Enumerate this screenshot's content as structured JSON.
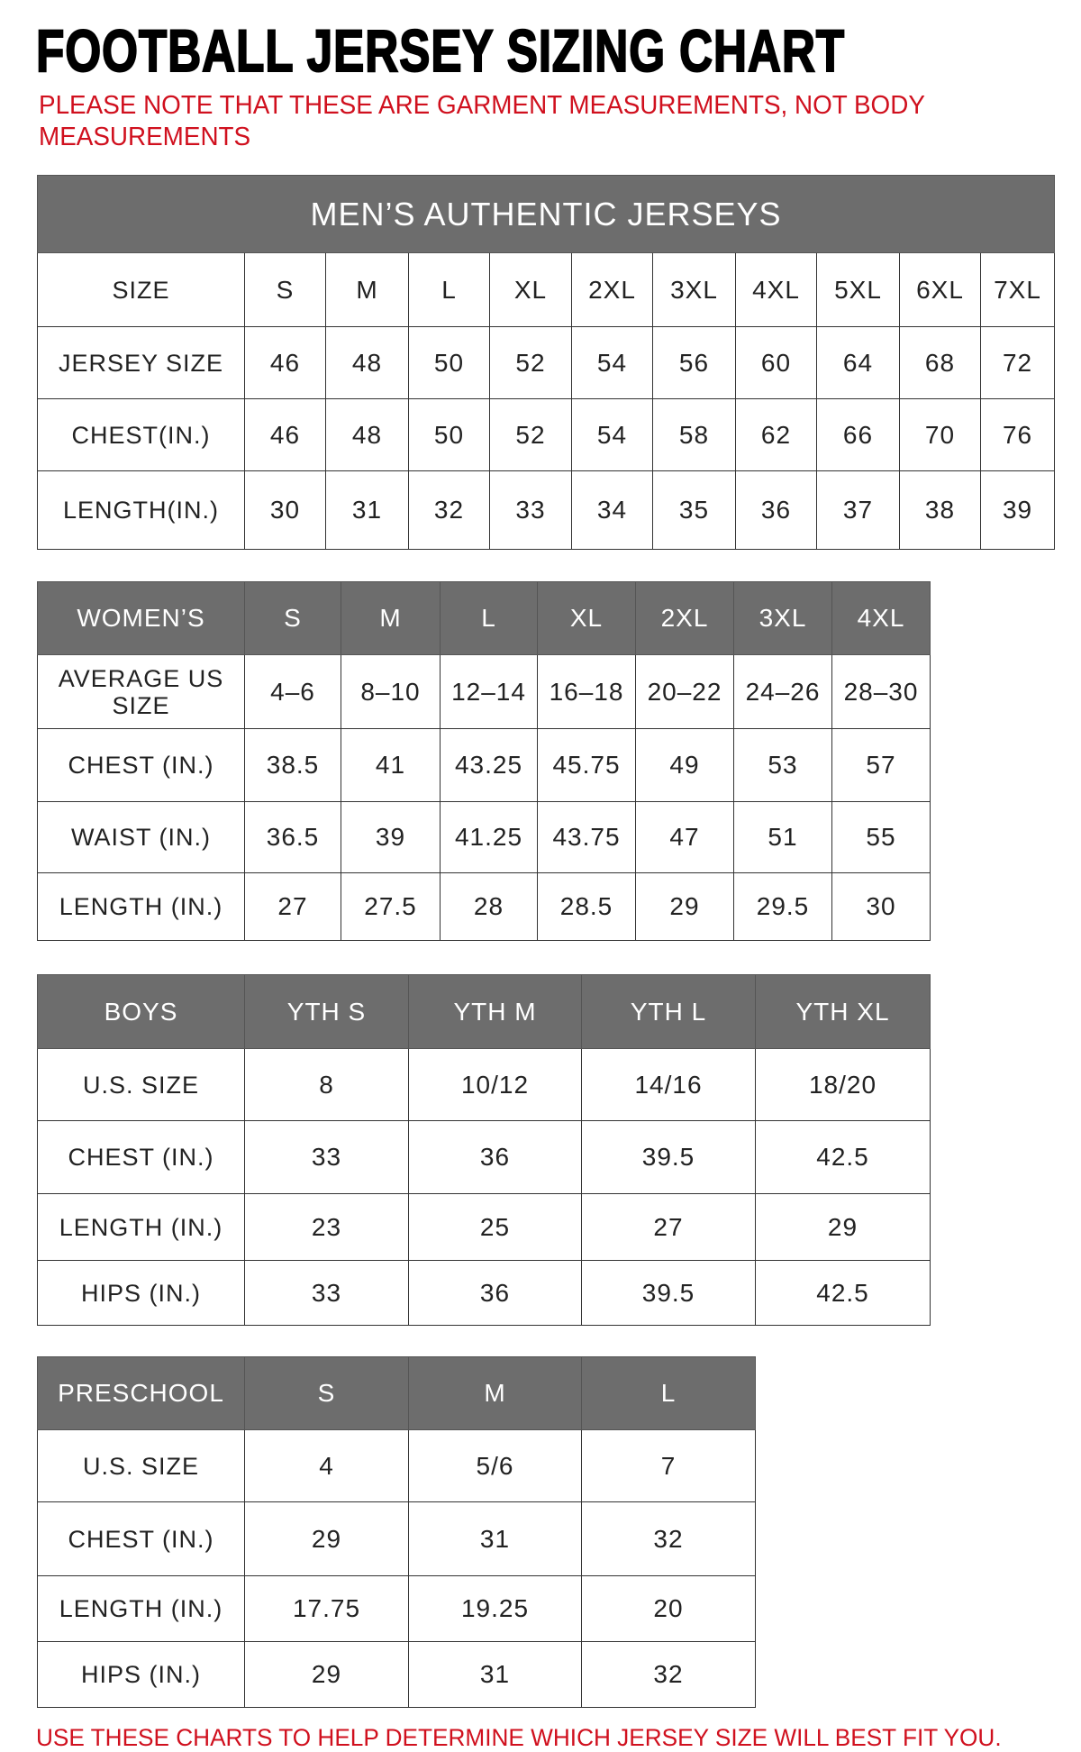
{
  "title": "FOOTBALL JERSEY SIZING CHART",
  "note": "PLEASE NOTE THAT THESE ARE GARMENT MEASUREMENTS, NOT BODY MEASUREMENTS",
  "footer": "USE THESE CHARTS TO HELP DETERMINE WHICH JERSEY SIZE WILL BEST FIT YOU.",
  "colors": {
    "header_bg": "#6d6d6d",
    "note_red": "#d0101e"
  },
  "tables": [
    {
      "id": "mens",
      "banner": "MEN’S AUTHENTIC JERSEYS",
      "header": null,
      "rows": [
        [
          "SIZE",
          "S",
          "M",
          "L",
          "XL",
          "2XL",
          "3XL",
          "4XL",
          "5XL",
          "6XL",
          "7XL"
        ],
        [
          "JERSEY SIZE",
          "46",
          "48",
          "50",
          "52",
          "54",
          "56",
          "60",
          "64",
          "68",
          "72"
        ],
        [
          "CHEST(IN.)",
          "46",
          "48",
          "50",
          "52",
          "54",
          "58",
          "62",
          "66",
          "70",
          "76"
        ],
        [
          "LENGTH(IN.)",
          "30",
          "31",
          "32",
          "33",
          "34",
          "35",
          "36",
          "37",
          "38",
          "39"
        ]
      ]
    },
    {
      "id": "womens",
      "header": [
        "WOMEN’S",
        "S",
        "M",
        "L",
        "XL",
        "2XL",
        "3XL",
        "4XL"
      ],
      "rows": [
        [
          "AVERAGE US SIZE",
          "4–6",
          "8–10",
          "12–14",
          "16–18",
          "20–22",
          "24–26",
          "28–30"
        ],
        [
          "CHEST (IN.)",
          "38.5",
          "41",
          "43.25",
          "45.75",
          "49",
          "53",
          "57"
        ],
        [
          "WAIST (IN.)",
          "36.5",
          "39",
          "41.25",
          "43.75",
          "47",
          "51",
          "55"
        ],
        [
          "LENGTH (IN.)",
          "27",
          "27.5",
          "28",
          "28.5",
          "29",
          "29.5",
          "30"
        ]
      ]
    },
    {
      "id": "boys",
      "header": [
        "BOYS",
        "YTH S",
        "YTH M",
        "YTH L",
        "YTH XL"
      ],
      "rows": [
        [
          "U.S. SIZE",
          "8",
          "10/12",
          "14/16",
          "18/20"
        ],
        [
          "CHEST (IN.)",
          "33",
          "36",
          "39.5",
          "42.5"
        ],
        [
          "LENGTH (IN.)",
          "23",
          "25",
          "27",
          "29"
        ],
        [
          "HIPS (IN.)",
          "33",
          "36",
          "39.5",
          "42.5"
        ]
      ]
    },
    {
      "id": "preschool",
      "header": [
        "PRESCHOOL",
        "S",
        "M",
        "L"
      ],
      "rows": [
        [
          "U.S. SIZE",
          "4",
          "5/6",
          "7"
        ],
        [
          "CHEST (IN.)",
          "29",
          "31",
          "32"
        ],
        [
          "LENGTH (IN.)",
          "17.75",
          "19.25",
          "20"
        ],
        [
          "HIPS (IN.)",
          "29",
          "31",
          "32"
        ]
      ]
    }
  ]
}
